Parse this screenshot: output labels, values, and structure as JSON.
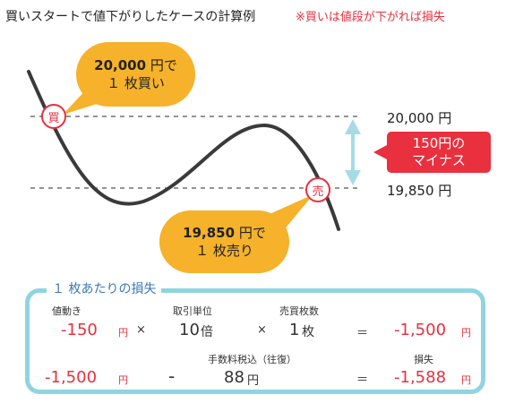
{
  "header": {
    "title": "買いスタートで値下がりしたケースの計算例",
    "note": "※買いは値段が下がれば損失"
  },
  "chart": {
    "buy_marker": "買",
    "sell_marker": "売",
    "price_high": "20,000 円",
    "price_low": "19,850 円",
    "buy_bubble": {
      "line1_amount": "20,000",
      "line1_unit": " 円で",
      "line2": "１ 枚買い"
    },
    "sell_bubble": {
      "line1_amount": "19,850",
      "line1_unit": " 円で",
      "line2": "１ 枚売り"
    },
    "minus_callout": {
      "line1": "150円の",
      "line2": "マイナス"
    },
    "colors": {
      "bubble": "#f5b22a",
      "callout": "#e8303f",
      "arrow": "#a6dbe6",
      "curve": "#3a3a3a"
    }
  },
  "loss": {
    "title": "１ 枚あたりの損失",
    "row1": {
      "label_move": "値動き",
      "move_value": "-150",
      "move_unit": "円",
      "op_times1": "×",
      "label_unit": "取引単位",
      "unit_value": "10",
      "unit_suffix": "倍",
      "op_times2": "×",
      "label_lots": "売買枚数",
      "lots_value": "1",
      "lots_suffix": "枚",
      "op_equals": "＝",
      "result_value": "-1,500",
      "result_unit": "円"
    },
    "row2": {
      "start_value": "-1,500",
      "start_unit": "円",
      "op_minus": "-",
      "label_fee": "手数料税込（往復）",
      "fee_value": "88",
      "fee_unit": "円",
      "op_equals": "＝",
      "label_loss": "損失",
      "loss_value": "-1,588",
      "loss_unit": "円"
    }
  }
}
